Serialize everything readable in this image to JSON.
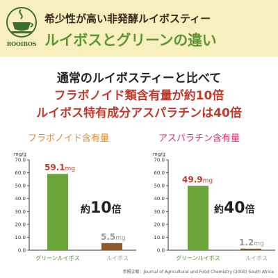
{
  "header": {
    "logo_text": "ROOIBOS",
    "line1": "希少性が高い非発酵ルイボスティー",
    "line2": "ルイボスとグリーンの違い"
  },
  "headline": {
    "line1": "通常のルイボスティーと比べて",
    "line2": "フラボノイド類含有量が約10倍",
    "line3": "ルイボス特有成分アスパラチンは40倍"
  },
  "source": "参照文献：Journal of Agricultural and Food Chemistry (2003) South Africa",
  "colors": {
    "green_bar": "#6aa539",
    "brown_bar": "#8a5a2b",
    "gray_label": "#9a9a9a",
    "orange_title": "#e08a2c",
    "pink_title": "#d6336c",
    "red_value": "#c0392b"
  },
  "chart_data": [
    {
      "type": "bar",
      "title": "フラボノイド含有量",
      "ylabel": "mg/g",
      "ylim": [
        0,
        70
      ],
      "yticks": [
        "0.0",
        "10.0",
        "20.0",
        "30.0",
        "40.0",
        "50.0",
        "60.0",
        "70.0"
      ],
      "categories": [
        "グリーンルイボス",
        "ルイボス"
      ],
      "values": [
        59.1,
        5.5
      ],
      "value_labels": [
        "59.1",
        "5.5"
      ],
      "unit": "mg",
      "ratio_prefix": "約",
      "ratio_number": "10",
      "ratio_suffix": "倍"
    },
    {
      "type": "bar",
      "title": "アスパラチン含有量",
      "ylabel": "mg/g",
      "ylim": [
        0,
        70
      ],
      "yticks": [
        "0.0",
        "10.0",
        "20.0",
        "30.0",
        "40.0",
        "50.0",
        "60.0",
        "70.0"
      ],
      "categories": [
        "グリーンルイボス",
        "ルイボス"
      ],
      "values": [
        49.9,
        1.2
      ],
      "value_labels": [
        "49.9",
        "1.2"
      ],
      "unit": "mg",
      "ratio_prefix": "約",
      "ratio_number": "40",
      "ratio_suffix": "倍"
    }
  ]
}
